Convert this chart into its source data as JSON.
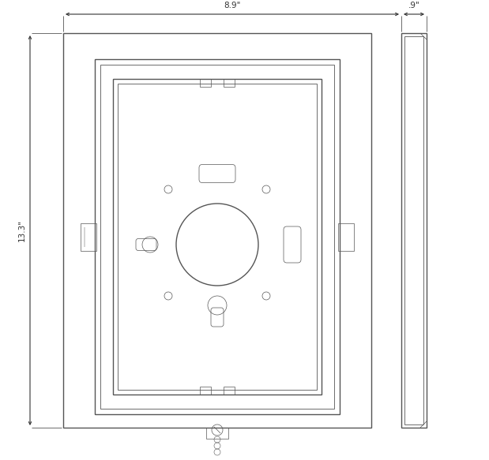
{
  "bg_color": "#ffffff",
  "line_color": "#555555",
  "dim_color": "#333333",
  "lw_main": 1.0,
  "lw_thin": 0.6,
  "lw_detail": 0.5,
  "fig_w": 6.19,
  "fig_h": 5.83,
  "dim_89_label": "8.9\"",
  "dim_9_label": ".9\"",
  "dim_133_label": "13.3\""
}
